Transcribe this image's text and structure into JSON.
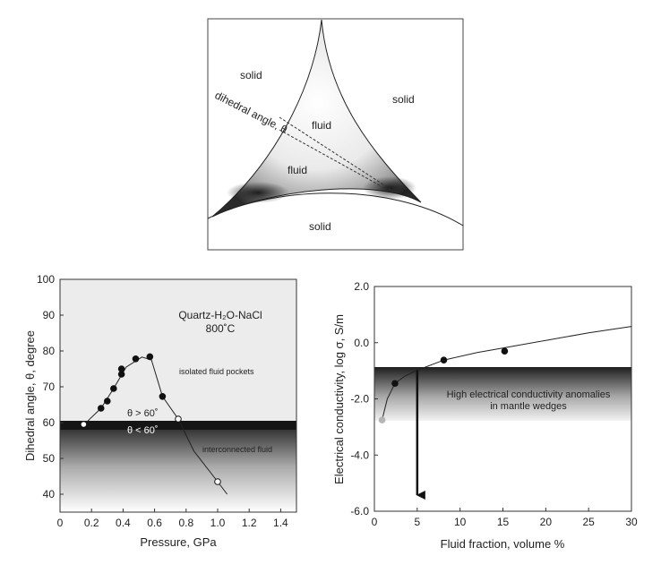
{
  "diagram": {
    "labels": {
      "solid_left": "solid",
      "solid_right": "solid",
      "solid_bottom": "solid",
      "fluid_upper": "fluid",
      "fluid_lower": "fluid",
      "dihedral": "dihedral angle, θ"
    }
  },
  "chart_data": [
    {
      "type": "scatter",
      "title": "",
      "annotation_system": "Quartz-H₂O-NaCl",
      "annotation_temperature": "800˚C",
      "xlabel": "Pressure, GPa",
      "ylabel": "Dihedral angle, θ, degree",
      "xlim": [
        0,
        1.5
      ],
      "ylim": [
        35,
        100
      ],
      "xticks": [
        "0",
        "0.2",
        "0.4",
        "0.6",
        "0.8",
        "1.0",
        "1.2",
        "1.4"
      ],
      "yticks": [
        "40",
        "50",
        "60",
        "70",
        "80",
        "90",
        "100"
      ],
      "band_threshold": 60,
      "labels": {
        "above_region": "isolated fluid pockets",
        "band_upper": "θ > 60˚",
        "band_lower": "θ < 60˚",
        "below_region": "interconnected fluid"
      },
      "series": [
        {
          "marker": "filled",
          "points": [
            [
              0.26,
              64
            ],
            [
              0.3,
              66
            ],
            [
              0.34,
              69.5
            ],
            [
              0.39,
              73.5
            ],
            [
              0.39,
              75
            ],
            [
              0.48,
              77.8
            ],
            [
              0.57,
              78.4
            ],
            [
              0.65,
              67.3
            ]
          ]
        },
        {
          "marker": "open",
          "points": [
            [
              0.15,
              59.5
            ],
            [
              0.75,
              61
            ],
            [
              1.0,
              43.5
            ]
          ]
        }
      ],
      "trend": [
        [
          0.16,
          59.8
        ],
        [
          0.26,
          64
        ],
        [
          0.34,
          69.5
        ],
        [
          0.42,
          75.5
        ],
        [
          0.52,
          78.3
        ],
        [
          0.58,
          77.5
        ],
        [
          0.65,
          67.3
        ],
        [
          0.75,
          61
        ],
        [
          0.85,
          52
        ],
        [
          1.0,
          43.5
        ],
        [
          1.06,
          40
        ]
      ]
    },
    {
      "type": "scatter",
      "title": "",
      "xlabel": "Fluid fraction, volume %",
      "ylabel": "Electrical conductivity, log σ,  S/m",
      "xlim": [
        0,
        30
      ],
      "ylim": [
        -6,
        2
      ],
      "xticks": [
        "0",
        "5",
        "10",
        "15",
        "20",
        "25",
        "30"
      ],
      "yticks": [
        "-6.0",
        "-4.0",
        "-2.0",
        "0.0",
        "2.0"
      ],
      "band": [
        -2.9,
        -1.0
      ],
      "band_label_line1": "High electrical conductivity anomalies",
      "band_label_line2": "in  mantle wedges",
      "arrow_x": 5,
      "points_filled": [
        [
          2.4,
          -1.45
        ],
        [
          8.1,
          -0.62
        ],
        [
          15.2,
          -0.3
        ]
      ],
      "points_gray": [
        [
          0.9,
          -2.75
        ]
      ],
      "trend": [
        [
          0.9,
          -2.75
        ],
        [
          1.5,
          -2.0
        ],
        [
          2.4,
          -1.45
        ],
        [
          3.5,
          -1.2
        ],
        [
          5,
          -0.98
        ],
        [
          8.1,
          -0.62
        ],
        [
          12,
          -0.35
        ],
        [
          15.2,
          -0.18
        ],
        [
          20,
          0.08
        ],
        [
          25,
          0.35
        ],
        [
          30,
          0.58
        ]
      ]
    }
  ]
}
